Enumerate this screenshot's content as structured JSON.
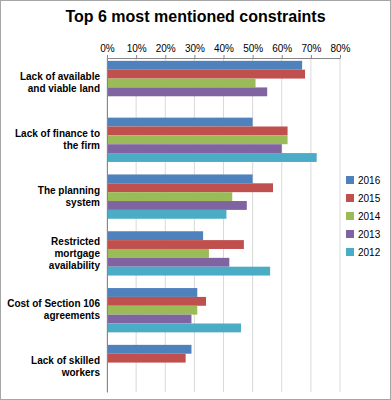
{
  "chart_data": {
    "type": "bar",
    "title": "Top 6 most mentioned constraints",
    "orientation": "horizontal",
    "grid": true,
    "legend": "right",
    "categories": [
      "Lack of available and viable land",
      "Lack of finance to the firm",
      "The planning system",
      "Restricted mortgage availability",
      "Cost of Section 106 agreements",
      "Lack of skilled workers"
    ],
    "series": [
      {
        "name": "2016",
        "color": "#4f81bd",
        "values": [
          67,
          50,
          50,
          33,
          31,
          29
        ]
      },
      {
        "name": "2015",
        "color": "#c0504d",
        "values": [
          68,
          62,
          57,
          47,
          34,
          27
        ]
      },
      {
        "name": "2014",
        "color": "#9bbb59",
        "values": [
          51,
          62,
          43,
          35,
          31,
          null
        ]
      },
      {
        "name": "2013",
        "color": "#8064a2",
        "values": [
          55,
          60,
          48,
          42,
          29,
          null
        ]
      },
      {
        "name": "2012",
        "color": "#4bacc6",
        "values": [
          null,
          72,
          41,
          56,
          46,
          null
        ]
      }
    ],
    "xlim": [
      0,
      80
    ],
    "xticks": [
      {
        "value": 0,
        "label": "0%"
      },
      {
        "value": 10,
        "label": "10%"
      },
      {
        "value": 20,
        "label": "20%"
      },
      {
        "value": 30,
        "label": "30%"
      },
      {
        "value": 40,
        "label": "40%"
      },
      {
        "value": 50,
        "label": "50%"
      },
      {
        "value": 60,
        "label": "60%"
      },
      {
        "value": 70,
        "label": "70%"
      },
      {
        "value": 80,
        "label": "80%"
      }
    ]
  }
}
